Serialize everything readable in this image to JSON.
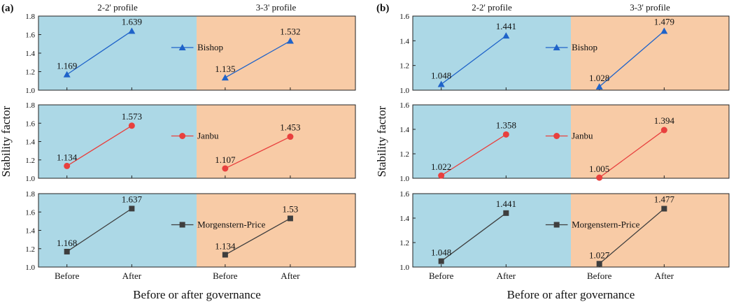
{
  "chart_data": {
    "type": "line",
    "x_axis_title": "Before or after governance",
    "y_axis_title": "Stability factor",
    "categories": [
      "Before",
      "After"
    ],
    "profiles": [
      "2-2' profile",
      "3-3' profile"
    ],
    "colors": {
      "profile_2_bg": "#acd8e6",
      "profile_3_bg": "#f8cba6",
      "Bishop": "#1f63c9",
      "Janbu": "#e8403e",
      "Morgenstern-Price": "#3e3e3e"
    },
    "methods": [
      {
        "name": "Bishop",
        "marker": "triangle"
      },
      {
        "name": "Janbu",
        "marker": "circle"
      },
      {
        "name": "Morgenstern-Price",
        "marker": "square"
      }
    ],
    "panels": [
      {
        "label": "(a)",
        "rows": [
          {
            "method": "Bishop",
            "ylim": [
              1.0,
              1.8
            ],
            "yticks": [
              "1.0",
              "1.2",
              "1.4",
              "1.6",
              "1.8"
            ],
            "profile_2": {
              "values": [
                1.169,
                1.639
              ],
              "labels": [
                "1.169",
                "1.639"
              ]
            },
            "profile_3": {
              "values": [
                1.135,
                1.532
              ],
              "labels": [
                "1.135",
                "1.532"
              ]
            }
          },
          {
            "method": "Janbu",
            "ylim": [
              1.0,
              1.8
            ],
            "yticks": [
              "1.0",
              "1.2",
              "1.4",
              "1.6",
              "1.8"
            ],
            "profile_2": {
              "values": [
                1.134,
                1.573
              ],
              "labels": [
                "1.134",
                "1.573"
              ]
            },
            "profile_3": {
              "values": [
                1.107,
                1.453
              ],
              "labels": [
                "1.107",
                "1.453"
              ]
            }
          },
          {
            "method": "Morgenstern-Price",
            "ylim": [
              1.0,
              1.8
            ],
            "yticks": [
              "1.0",
              "1.2",
              "1.4",
              "1.6",
              "1.8"
            ],
            "profile_2": {
              "values": [
                1.168,
                1.637
              ],
              "labels": [
                "1.168",
                "1.637"
              ]
            },
            "profile_3": {
              "values": [
                1.134,
                1.53
              ],
              "labels": [
                "1.134",
                "1.53"
              ]
            }
          }
        ]
      },
      {
        "label": "(b)",
        "rows": [
          {
            "method": "Bishop",
            "ylim": [
              1.0,
              1.6
            ],
            "yticks": [
              "1.0",
              "1.2",
              "1.4",
              "1.6"
            ],
            "profile_2": {
              "values": [
                1.048,
                1.441
              ],
              "labels": [
                "1.048",
                "1.441"
              ]
            },
            "profile_3": {
              "values": [
                1.028,
                1.479
              ],
              "labels": [
                "1.028",
                "1.479"
              ]
            }
          },
          {
            "method": "Janbu",
            "ylim": [
              1.0,
              1.6
            ],
            "yticks": [
              "1.0",
              "1.2",
              "1.4",
              "1.6"
            ],
            "profile_2": {
              "values": [
                1.022,
                1.358
              ],
              "labels": [
                "1.022",
                "1.358"
              ]
            },
            "profile_3": {
              "values": [
                1.005,
                1.394
              ],
              "labels": [
                "1.005",
                "1.394"
              ]
            }
          },
          {
            "method": "Morgenstern-Price",
            "ylim": [
              1.0,
              1.6
            ],
            "yticks": [
              "1.0",
              "1.2",
              "1.4",
              "1.6"
            ],
            "profile_2": {
              "values": [
                1.048,
                1.441
              ],
              "labels": [
                "1.048",
                "1.441"
              ]
            },
            "profile_3": {
              "values": [
                1.027,
                1.477
              ],
              "labels": [
                "1.027",
                "1.477"
              ]
            }
          }
        ]
      }
    ]
  }
}
